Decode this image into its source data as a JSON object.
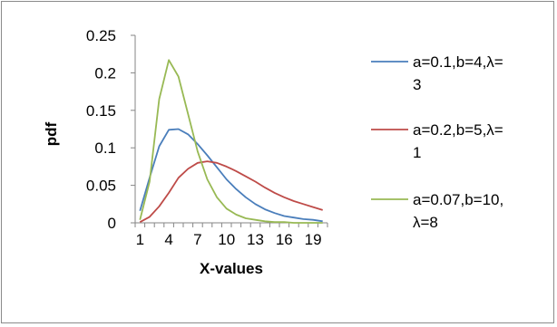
{
  "chart_data": {
    "type": "line",
    "xlabel": "X-values",
    "ylabel": "pdf",
    "x": [
      1,
      2,
      3,
      4,
      5,
      6,
      7,
      8,
      9,
      10,
      11,
      12,
      13,
      14,
      15,
      16,
      17,
      18,
      19,
      20
    ],
    "xticks": [
      1,
      4,
      7,
      10,
      13,
      16,
      19
    ],
    "xtick_labels": [
      "1",
      "4",
      "7",
      "10",
      "13",
      "16",
      "19"
    ],
    "ylim": [
      0,
      0.25
    ],
    "yticks": [
      0,
      0.05,
      0.1,
      0.15,
      0.2,
      0.25
    ],
    "ytick_labels": [
      "0",
      "0.05",
      "0.1",
      "0.15",
      "0.2",
      "0.25"
    ],
    "grid": false,
    "legend": "right",
    "series": [
      {
        "name_lines": [
          "a=0.1,b=4,λ=",
          "3"
        ],
        "color": "#4a7ebb",
        "values": [
          0.016,
          0.06,
          0.102,
          0.124,
          0.125,
          0.118,
          0.105,
          0.09,
          0.074,
          0.058,
          0.045,
          0.034,
          0.025,
          0.018,
          0.013,
          0.009,
          0.007,
          0.005,
          0.004,
          0.002
        ]
      },
      {
        "name_lines": [
          "a=0.2,b=5,λ=",
          "1"
        ],
        "color": "#be4b48",
        "values": [
          0.001,
          0.008,
          0.022,
          0.04,
          0.06,
          0.072,
          0.08,
          0.082,
          0.08,
          0.075,
          0.069,
          0.062,
          0.055,
          0.047,
          0.04,
          0.034,
          0.029,
          0.025,
          0.021,
          0.017
        ]
      },
      {
        "name_lines": [
          "a=0.07,b=10,",
          "λ=8"
        ],
        "color": "#98b954",
        "values": [
          0.004,
          0.055,
          0.165,
          0.217,
          0.195,
          0.145,
          0.095,
          0.058,
          0.034,
          0.019,
          0.011,
          0.006,
          0.004,
          0.002,
          0.001,
          0.001,
          0.0,
          0.0,
          0.0,
          0.0
        ]
      }
    ]
  }
}
